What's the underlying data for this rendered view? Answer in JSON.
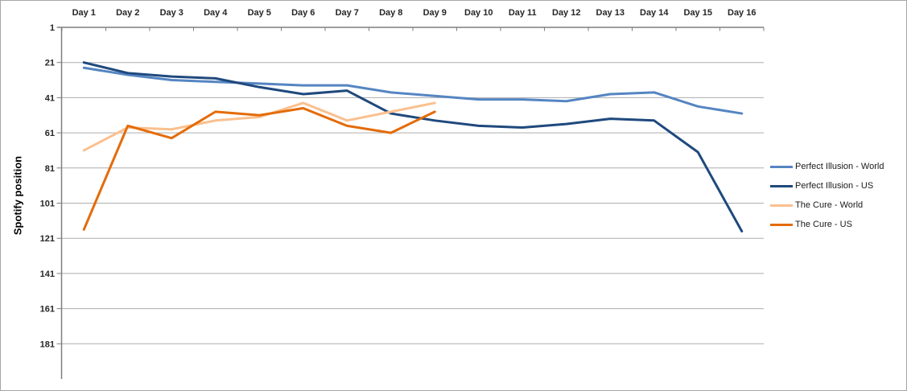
{
  "chart_data": {
    "type": "line",
    "title": "",
    "ylabel": "Spotify position",
    "xlabel": "",
    "categories": [
      "Day 1",
      "Day 2",
      "Day 3",
      "Day 4",
      "Day 5",
      "Day 6",
      "Day 7",
      "Day 8",
      "Day 9",
      "Day 10",
      "Day 11",
      "Day 12",
      "Day 13",
      "Day 14",
      "Day 15",
      "Day 16"
    ],
    "y_ticks": [
      1,
      21,
      41,
      61,
      81,
      101,
      121,
      141,
      161,
      181
    ],
    "ylim": [
      1,
      201
    ],
    "y_axis_reversed": true,
    "grid": true,
    "legend_position": "right",
    "series": [
      {
        "name": "Perfect Illusion - World",
        "color": "#5585C2",
        "values": [
          24,
          28,
          31,
          32,
          33,
          34,
          34,
          38,
          40,
          42,
          42,
          43,
          39,
          38,
          46,
          50
        ]
      },
      {
        "name": "Perfect Illusion - US",
        "color": "#1F497D",
        "values": [
          21,
          27,
          29,
          30,
          35,
          39,
          37,
          50,
          54,
          57,
          58,
          56,
          53,
          54,
          72,
          117
        ]
      },
      {
        "name": "The Cure - World",
        "color": "#FAC08F",
        "values": [
          71,
          58,
          59,
          54,
          52,
          44,
          54,
          49,
          44
        ]
      },
      {
        "name": "The Cure - US",
        "color": "#E36C0A",
        "values": [
          116,
          57,
          64,
          49,
          51,
          47,
          57,
          61,
          49
        ]
      }
    ],
    "colors": {
      "gridline": "#ADADAD",
      "axis": "#7F7F7F",
      "tick_label": "#262626",
      "legend_text": "#1A1A1A",
      "background": "#FFFFFF"
    }
  }
}
